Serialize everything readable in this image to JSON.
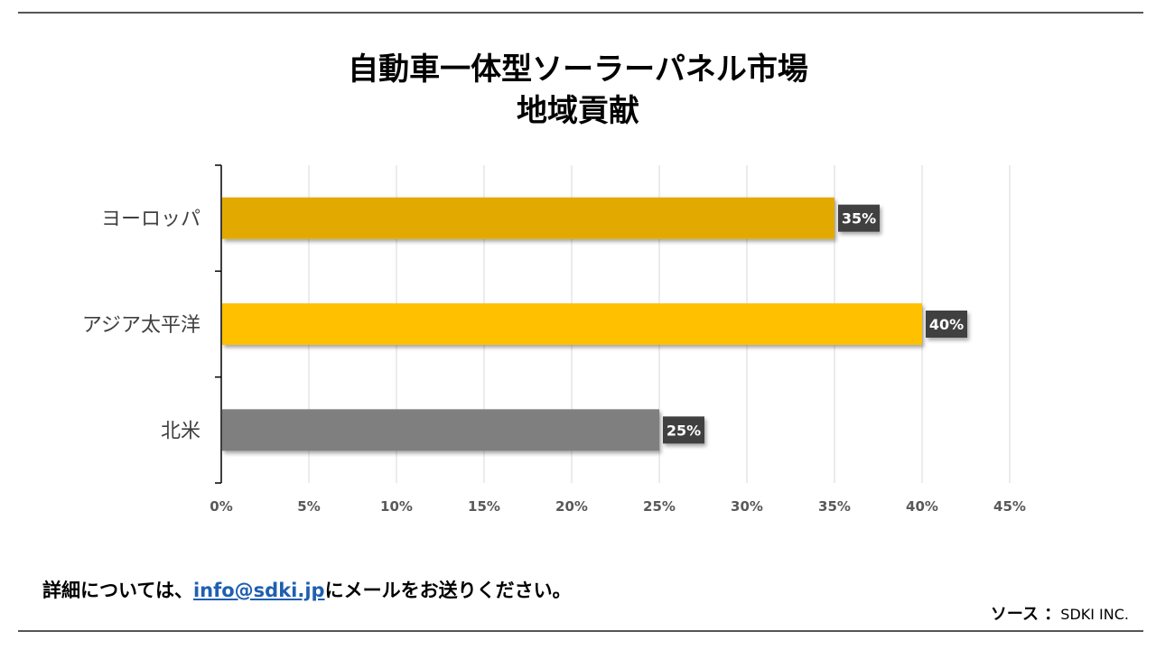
{
  "page": {
    "title_line1": "自動車一体型ソーラーパネル市場",
    "title_line2": "地域貢献",
    "footer_prefix": "詳細については、",
    "footer_email": "info@sdki.jp",
    "footer_suffix": "にメールをお送りください。",
    "source_label": "ソース ：",
    "source_value": "SDKI INC."
  },
  "chart_data": {
    "type": "bar",
    "orientation": "horizontal",
    "title": "自動車一体型ソーラーパネル市場 地域貢献",
    "categories": [
      "ヨーロッパ",
      "アジア太平洋",
      "北米"
    ],
    "values": [
      35,
      40,
      25
    ],
    "value_labels": [
      "35%",
      "40%",
      "25%"
    ],
    "colors": [
      "#e2aa00",
      "#ffc000",
      "#7f7f7f"
    ],
    "xlim": [
      0,
      45
    ],
    "xticks": [
      "0%",
      "5%",
      "10%",
      "15%",
      "20%",
      "25%",
      "30%",
      "35%",
      "40%",
      "45%"
    ],
    "xlabel": "",
    "ylabel": "",
    "grid": true,
    "label_bg": "#404040",
    "gridline_color": "#d9d9d9"
  }
}
